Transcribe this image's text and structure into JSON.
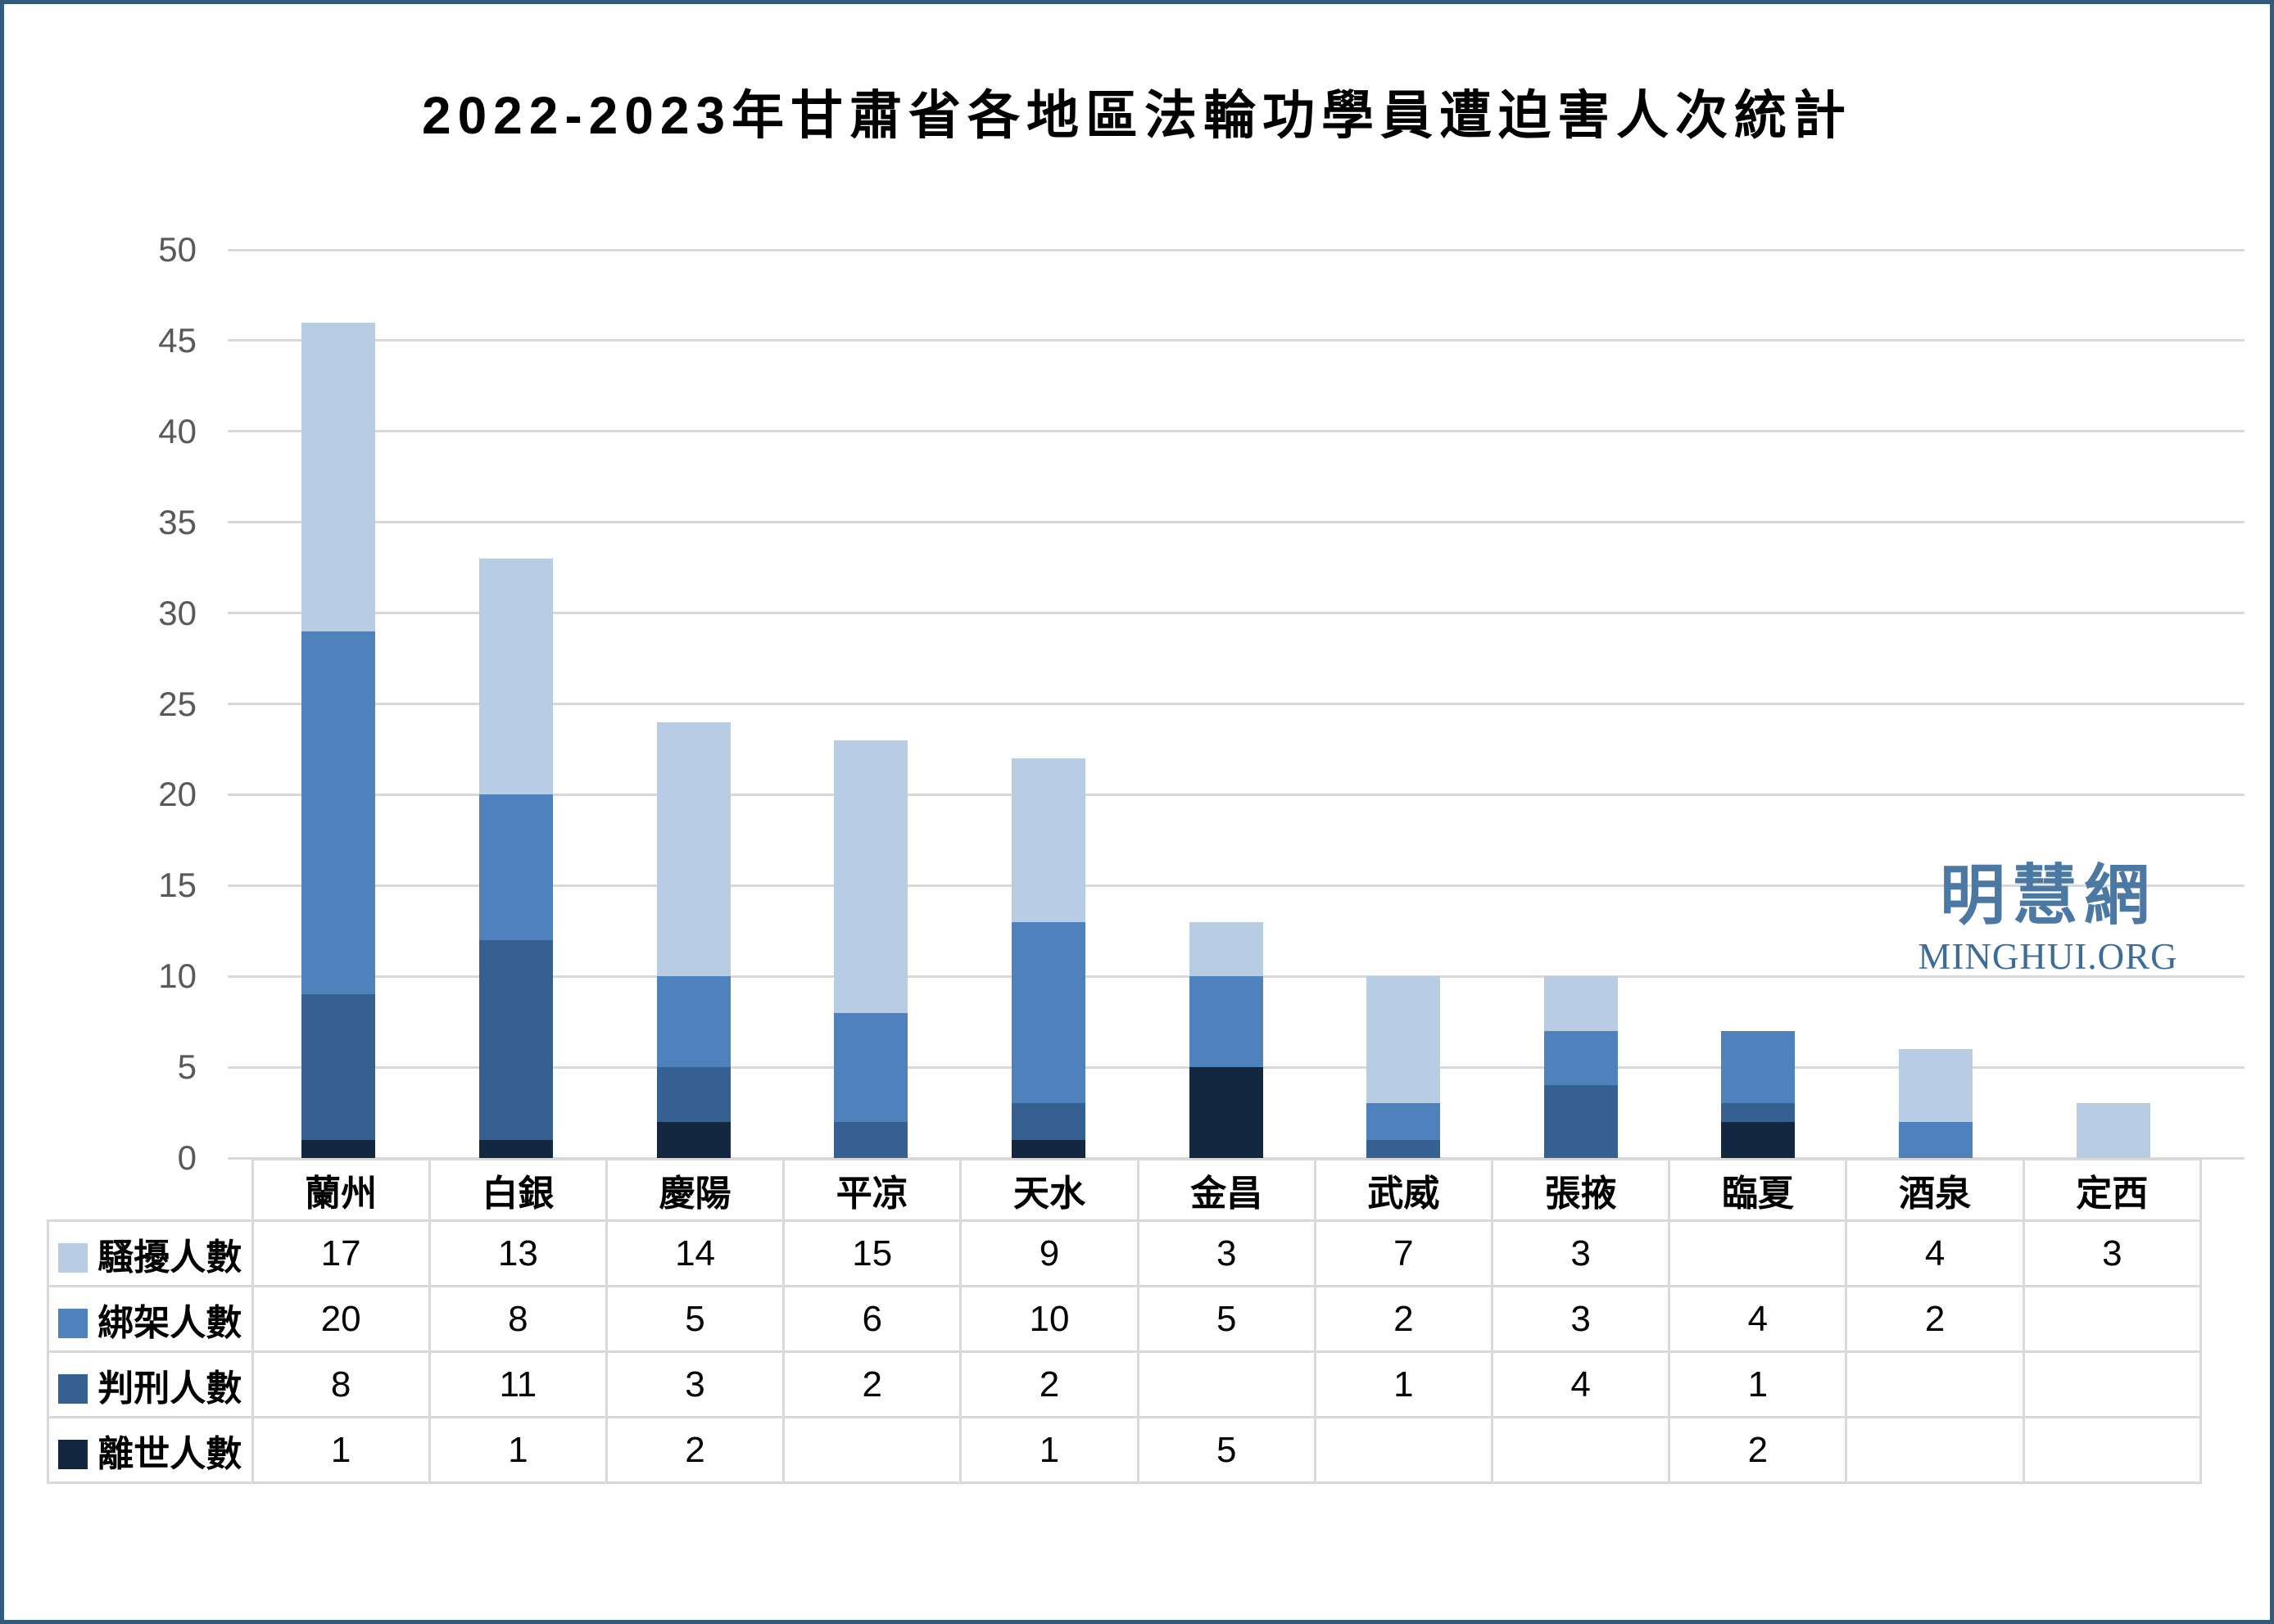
{
  "page": {
    "border_color": "#33597B",
    "background": "#FFFFFF"
  },
  "title": "2022-2023年甘肅省各地區法輪功學員遭迫害人次統計",
  "watermark": {
    "cjk": "明慧網",
    "latin": "MINGHUI.ORG",
    "color_cjk": "#4C78A4",
    "color_latin": "#3D6C99"
  },
  "chart_data": {
    "type": "bar",
    "variant": "stacked-column-with-data-table",
    "title": "2022-2023年甘肅省各地區法輪功學員遭迫害人次統計",
    "categories": [
      "蘭州",
      "白銀",
      "慶陽",
      "平凉",
      "天水",
      "金昌",
      "武威",
      "張掖",
      "臨夏",
      "酒泉",
      "定西"
    ],
    "series": [
      {
        "name": "騷擾人數",
        "color": "#B8CCE4",
        "values": [
          17,
          13,
          14,
          15,
          9,
          3,
          7,
          3,
          null,
          4,
          3
        ]
      },
      {
        "name": "綁架人數",
        "color": "#4F81BD",
        "values": [
          20,
          8,
          5,
          6,
          10,
          5,
          2,
          3,
          4,
          2,
          null
        ]
      },
      {
        "name": "判刑人數",
        "color": "#366092",
        "values": [
          8,
          11,
          3,
          2,
          2,
          null,
          1,
          4,
          1,
          null,
          null
        ]
      },
      {
        "name": "離世人數",
        "color": "#142741",
        "values": [
          1,
          1,
          2,
          null,
          1,
          5,
          null,
          null,
          2,
          null,
          null
        ]
      }
    ],
    "stack_order_bottom_to_top": [
      3,
      2,
      1,
      0
    ],
    "y_axis": {
      "min": 0,
      "max": 50,
      "step": 5,
      "tick_labels": [
        "0",
        "5",
        "10",
        "15",
        "20",
        "25",
        "30",
        "35",
        "40",
        "45",
        "50"
      ],
      "label_color": "#595959"
    },
    "grid": true,
    "gridline_color": "#D9D9D9",
    "table_border_color": "#D9D9D9",
    "legend_position": "data-table-row-headers"
  }
}
